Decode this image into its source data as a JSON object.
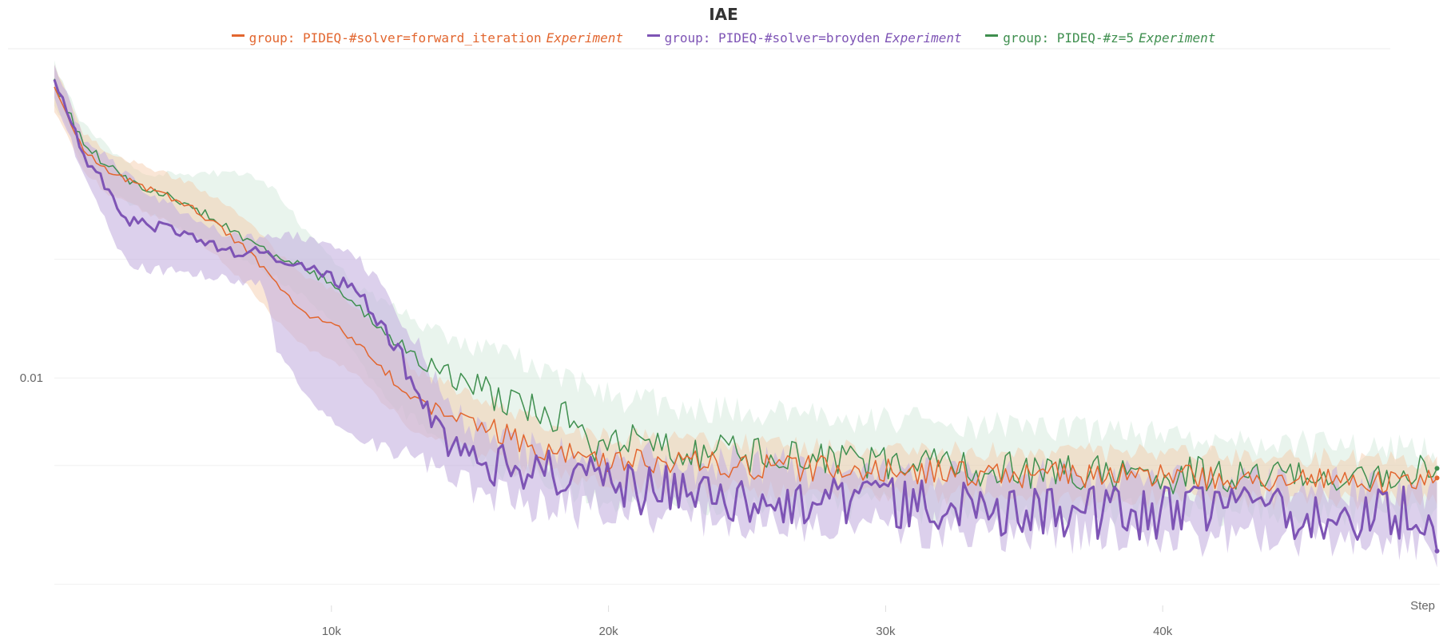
{
  "chart_data": {
    "type": "line",
    "title": "IAE",
    "xlabel": "Step",
    "ylabel": "",
    "yscale": "log",
    "xlim": [
      0,
      50000
    ],
    "ylim": [
      0.0026,
      0.065
    ],
    "xticks": [
      {
        "value": 10000,
        "label": "10k"
      },
      {
        "value": 20000,
        "label": "20k"
      },
      {
        "value": 30000,
        "label": "30k"
      },
      {
        "value": 40000,
        "label": "40k"
      }
    ],
    "yticks": [
      {
        "value": 0.01,
        "label": "0.01"
      }
    ],
    "grid": true,
    "legend_position": "top",
    "series": [
      {
        "name": "group: PIDEQ-#solver=forward_iteration",
        "name_suffix": "Experiment",
        "color": "#e2662f",
        "band_color": "#f3c7a4",
        "points": [
          [
            0,
            0.055
          ],
          [
            1000,
            0.038
          ],
          [
            2000,
            0.033
          ],
          [
            3000,
            0.031
          ],
          [
            4000,
            0.029
          ],
          [
            5000,
            0.027
          ],
          [
            6000,
            0.024
          ],
          [
            7000,
            0.021
          ],
          [
            8000,
            0.0175
          ],
          [
            9000,
            0.0145
          ],
          [
            10000,
            0.0138
          ],
          [
            11000,
            0.0122
          ],
          [
            12000,
            0.0103
          ],
          [
            13000,
            0.0088
          ],
          [
            14000,
            0.0082
          ],
          [
            15000,
            0.0078
          ],
          [
            16000,
            0.0073
          ],
          [
            17000,
            0.0069
          ],
          [
            18000,
            0.0066
          ],
          [
            19000,
            0.0063
          ],
          [
            20000,
            0.0062
          ],
          [
            22000,
            0.0061
          ],
          [
            25000,
            0.006
          ],
          [
            28000,
            0.0059
          ],
          [
            31000,
            0.0058
          ],
          [
            34000,
            0.0057
          ],
          [
            37000,
            0.0057
          ],
          [
            40000,
            0.0056
          ],
          [
            43000,
            0.0056
          ],
          [
            46000,
            0.0055
          ],
          [
            48000,
            0.0055
          ],
          [
            49900,
            0.0054
          ]
        ],
        "band_lower": [
          [
            0,
            0.048
          ],
          [
            1000,
            0.034
          ],
          [
            2000,
            0.029
          ],
          [
            3000,
            0.027
          ],
          [
            4000,
            0.025
          ],
          [
            5000,
            0.023
          ],
          [
            6000,
            0.02
          ],
          [
            7000,
            0.017
          ],
          [
            8000,
            0.014
          ],
          [
            9000,
            0.012
          ],
          [
            10000,
            0.0112
          ],
          [
            11000,
            0.01
          ],
          [
            12000,
            0.0085
          ],
          [
            13000,
            0.0074
          ],
          [
            14000,
            0.0069
          ],
          [
            15000,
            0.0066
          ],
          [
            16000,
            0.0062
          ],
          [
            17000,
            0.0059
          ],
          [
            18000,
            0.0057
          ],
          [
            19000,
            0.0055
          ],
          [
            20000,
            0.0054
          ],
          [
            25000,
            0.0052
          ],
          [
            30000,
            0.0051
          ],
          [
            35000,
            0.005
          ],
          [
            40000,
            0.005
          ],
          [
            45000,
            0.0049
          ],
          [
            49900,
            0.0049
          ]
        ],
        "band_upper": [
          [
            0,
            0.062
          ],
          [
            1000,
            0.042
          ],
          [
            2000,
            0.037
          ],
          [
            3000,
            0.035
          ],
          [
            4000,
            0.033
          ],
          [
            5000,
            0.031
          ],
          [
            6000,
            0.028
          ],
          [
            7000,
            0.025
          ],
          [
            8000,
            0.021
          ],
          [
            9000,
            0.018
          ],
          [
            10000,
            0.0168
          ],
          [
            11000,
            0.0148
          ],
          [
            12000,
            0.0125
          ],
          [
            13000,
            0.0105
          ],
          [
            14000,
            0.0097
          ],
          [
            15000,
            0.0092
          ],
          [
            16000,
            0.0086
          ],
          [
            17000,
            0.0081
          ],
          [
            18000,
            0.0077
          ],
          [
            19000,
            0.0073
          ],
          [
            20000,
            0.0071
          ],
          [
            25000,
            0.0068
          ],
          [
            30000,
            0.0066
          ],
          [
            35000,
            0.0065
          ],
          [
            40000,
            0.0064
          ],
          [
            45000,
            0.0063
          ],
          [
            49900,
            0.0062
          ]
        ],
        "noise": 0.035
      },
      {
        "name": "group: PIDEQ-#solver=broyden",
        "name_suffix": "Experiment",
        "color": "#7e54b5",
        "band_color": "#c4b1e0",
        "points": [
          [
            0,
            0.058
          ],
          [
            1000,
            0.037
          ],
          [
            2000,
            0.03
          ],
          [
            2500,
            0.026
          ],
          [
            3000,
            0.0245
          ],
          [
            4000,
            0.024
          ],
          [
            5000,
            0.0225
          ],
          [
            6000,
            0.0215
          ],
          [
            7000,
            0.0205
          ],
          [
            7400,
            0.0216
          ],
          [
            8000,
            0.0195
          ],
          [
            9000,
            0.019
          ],
          [
            10000,
            0.018
          ],
          [
            11000,
            0.0165
          ],
          [
            12000,
            0.013
          ],
          [
            13000,
            0.0098
          ],
          [
            14000,
            0.0072
          ],
          [
            14500,
            0.0066
          ],
          [
            15000,
            0.0063
          ],
          [
            16000,
            0.0061
          ],
          [
            17000,
            0.0059
          ],
          [
            18000,
            0.0057
          ],
          [
            19000,
            0.0056
          ],
          [
            20000,
            0.0055
          ],
          [
            22000,
            0.0052
          ],
          [
            25000,
            0.005
          ],
          [
            28000,
            0.0049
          ],
          [
            31000,
            0.0048
          ],
          [
            34000,
            0.0047
          ],
          [
            37000,
            0.0046
          ],
          [
            40000,
            0.0046
          ],
          [
            43000,
            0.0046
          ],
          [
            46000,
            0.0046
          ],
          [
            48000,
            0.0046
          ],
          [
            49000,
            0.0046
          ],
          [
            49500,
            0.0041
          ],
          [
            49900,
            0.0041
          ]
        ],
        "band_lower": [
          [
            0,
            0.053
          ],
          [
            1000,
            0.033
          ],
          [
            2000,
            0.024
          ],
          [
            2500,
            0.02
          ],
          [
            3000,
            0.019
          ],
          [
            5000,
            0.0185
          ],
          [
            7000,
            0.0175
          ],
          [
            7500,
            0.0178
          ],
          [
            8000,
            0.012
          ],
          [
            9000,
            0.009
          ],
          [
            10000,
            0.0078
          ],
          [
            11000,
            0.007
          ],
          [
            12000,
            0.0066
          ],
          [
            13000,
            0.0064
          ],
          [
            14000,
            0.0057
          ],
          [
            15000,
            0.0053
          ],
          [
            16000,
            0.005
          ],
          [
            17000,
            0.0049
          ],
          [
            18000,
            0.0048
          ],
          [
            20000,
            0.0046
          ],
          [
            25000,
            0.0043
          ],
          [
            30000,
            0.0042
          ],
          [
            35000,
            0.0041
          ],
          [
            40000,
            0.004
          ],
          [
            45000,
            0.004
          ],
          [
            49000,
            0.0039
          ],
          [
            49900,
            0.0034
          ]
        ],
        "band_upper": [
          [
            0,
            0.064
          ],
          [
            1000,
            0.041
          ],
          [
            2000,
            0.036
          ],
          [
            3000,
            0.031
          ],
          [
            4000,
            0.028
          ],
          [
            5000,
            0.0255
          ],
          [
            6000,
            0.0235
          ],
          [
            7000,
            0.0225
          ],
          [
            7500,
            0.0228
          ],
          [
            8000,
            0.0232
          ],
          [
            9000,
            0.0228
          ],
          [
            10000,
            0.0218
          ],
          [
            11000,
            0.02
          ],
          [
            12000,
            0.0165
          ],
          [
            13000,
            0.0125
          ],
          [
            14000,
            0.0092
          ],
          [
            15000,
            0.0075
          ],
          [
            16000,
            0.007
          ],
          [
            17000,
            0.0067
          ],
          [
            18000,
            0.0065
          ],
          [
            20000,
            0.0063
          ],
          [
            25000,
            0.006
          ],
          [
            30000,
            0.0058
          ],
          [
            35000,
            0.0056
          ],
          [
            40000,
            0.0055
          ],
          [
            45000,
            0.0054
          ],
          [
            49900,
            0.0052
          ]
        ],
        "noise": 0.07
      },
      {
        "name": "group: PIDEQ-#z=5",
        "name_suffix": "Experiment",
        "color": "#3f8f4f",
        "band_color": "#cfe7d7",
        "points": [
          [
            0,
            0.056
          ],
          [
            1000,
            0.04
          ],
          [
            2000,
            0.034
          ],
          [
            3000,
            0.031
          ],
          [
            4000,
            0.029
          ],
          [
            5000,
            0.027
          ],
          [
            6000,
            0.025
          ],
          [
            7000,
            0.022
          ],
          [
            8000,
            0.0205
          ],
          [
            9000,
            0.019
          ],
          [
            10000,
            0.0175
          ],
          [
            11000,
            0.015
          ],
          [
            12000,
            0.0128
          ],
          [
            13000,
            0.0115
          ],
          [
            14000,
            0.0105
          ],
          [
            15000,
            0.0096
          ],
          [
            16000,
            0.009
          ],
          [
            17000,
            0.0085
          ],
          [
            18000,
            0.0081
          ],
          [
            19000,
            0.0078
          ],
          [
            19500,
            0.0065
          ],
          [
            20000,
            0.007
          ],
          [
            22000,
            0.0067
          ],
          [
            25000,
            0.0064
          ],
          [
            28000,
            0.0062
          ],
          [
            31000,
            0.006
          ],
          [
            34000,
            0.0059
          ],
          [
            37000,
            0.0058
          ],
          [
            40000,
            0.0057
          ],
          [
            43000,
            0.0057
          ],
          [
            46000,
            0.0056
          ],
          [
            48000,
            0.0056
          ],
          [
            49900,
            0.0059
          ]
        ],
        "band_lower": [
          [
            0,
            0.05
          ],
          [
            1000,
            0.036
          ],
          [
            2000,
            0.03
          ],
          [
            3000,
            0.027
          ],
          [
            4000,
            0.025
          ],
          [
            5000,
            0.023
          ],
          [
            6000,
            0.0215
          ],
          [
            7000,
            0.0195
          ],
          [
            8000,
            0.018
          ],
          [
            9000,
            0.016
          ],
          [
            10000,
            0.014
          ],
          [
            11000,
            0.011
          ],
          [
            12000,
            0.009
          ],
          [
            13000,
            0.0078
          ],
          [
            14000,
            0.007
          ],
          [
            15000,
            0.0063
          ],
          [
            16000,
            0.0059
          ],
          [
            17000,
            0.0056
          ],
          [
            18000,
            0.0053
          ],
          [
            20000,
            0.005
          ],
          [
            25000,
            0.0048
          ],
          [
            30000,
            0.0047
          ],
          [
            35000,
            0.0046
          ],
          [
            40000,
            0.0046
          ],
          [
            45000,
            0.0046
          ],
          [
            49900,
            0.0046
          ]
        ],
        "band_upper": [
          [
            0,
            0.063
          ],
          [
            1000,
            0.044
          ],
          [
            2000,
            0.038
          ],
          [
            3000,
            0.034
          ],
          [
            3500,
            0.033
          ],
          [
            7000,
            0.033
          ],
          [
            8000,
            0.03
          ],
          [
            9000,
            0.024
          ],
          [
            10000,
            0.02
          ],
          [
            11000,
            0.017
          ],
          [
            12000,
            0.0155
          ],
          [
            13000,
            0.014
          ],
          [
            14000,
            0.013
          ],
          [
            15000,
            0.0122
          ],
          [
            16000,
            0.0115
          ],
          [
            17000,
            0.011
          ],
          [
            18000,
            0.0105
          ],
          [
            19000,
            0.0098
          ],
          [
            20000,
            0.009
          ],
          [
            22000,
            0.0086
          ],
          [
            25000,
            0.0082
          ],
          [
            28000,
            0.008
          ],
          [
            31000,
            0.0078
          ],
          [
            34000,
            0.0076
          ],
          [
            37000,
            0.0075
          ],
          [
            40000,
            0.0072
          ],
          [
            43000,
            0.007
          ],
          [
            46000,
            0.0067
          ],
          [
            49900,
            0.0066
          ]
        ],
        "noise": 0.05
      }
    ]
  }
}
